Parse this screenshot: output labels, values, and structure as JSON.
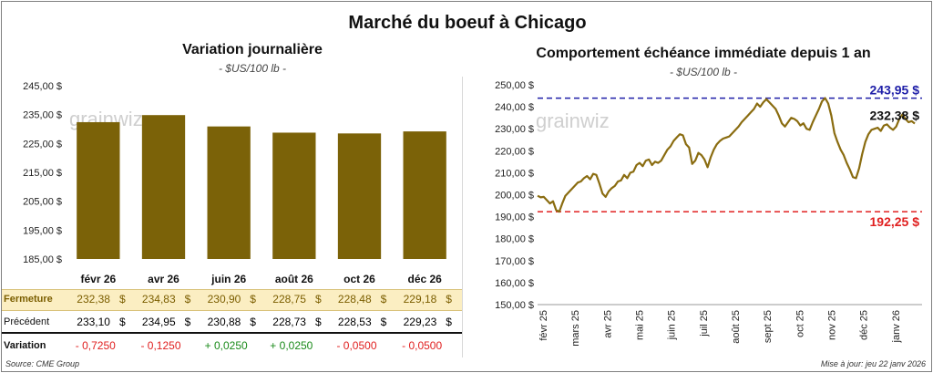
{
  "main_title": "Marché du boeuf à Chicago",
  "left_title": "Variation journalière",
  "left_unit": "- $US/100 lb -",
  "right_title": "Comportement échéance immédiate depuis 1 an",
  "right_unit": "- $US/100 lb -",
  "watermark": "grainwiz",
  "source": "Source: CME Group",
  "updated": "Mise à jour: jeu 22 janv 2026",
  "table": {
    "rows": [
      {
        "label": "Fermeture",
        "values": [
          "232,38",
          "234,83",
          "230,90",
          "228,75",
          "228,48",
          "229,18"
        ],
        "suffix": "$"
      },
      {
        "label": "Précédent",
        "values": [
          "233,10",
          "234,95",
          "230,88",
          "228,73",
          "228,53",
          "229,23"
        ],
        "suffix": "$"
      },
      {
        "label": "Variation",
        "values": [
          "- 0,7250",
          "- 0,1250",
          "+ 0,0250",
          "+ 0,0250",
          "- 0,0500",
          "- 0,0500"
        ],
        "suffix": ""
      }
    ]
  },
  "colors": {
    "bar": "#7b6208",
    "line": "#8a6c10",
    "high": "#1f1fa8",
    "low": "#e02020",
    "highlight": "#fbeec2",
    "pos": "#1a8a1a",
    "neg": "#e02020"
  },
  "chart_data": [
    {
      "type": "bar",
      "title": "Variation journalière",
      "categories": [
        "févr 26",
        "avr 26",
        "juin 26",
        "août 26",
        "oct 26",
        "déc 26"
      ],
      "values": [
        232.38,
        234.83,
        230.9,
        228.75,
        228.48,
        229.18
      ],
      "ylim": [
        185,
        245
      ],
      "yticks": [
        "245,00 $",
        "235,00 $",
        "225,00 $",
        "215,00 $",
        "205,00 $",
        "195,00 $",
        "185,00 $"
      ],
      "grid": false
    },
    {
      "type": "line",
      "title": "Comportement échéance immédiate depuis 1 an",
      "ylim": [
        150,
        250
      ],
      "yticks": [
        "250,00 $",
        "240,00 $",
        "230,00 $",
        "220,00 $",
        "210,00 $",
        "200,00 $",
        "190,00 $",
        "180,00 $",
        "170,00 $",
        "160,00 $",
        "150,00 $"
      ],
      "xticks": [
        "févr 25",
        "mars 25",
        "avr 25",
        "mai 25",
        "juin 25",
        "juil 25",
        "août 25",
        "sept 25",
        "oct 25",
        "nov 25",
        "déc 25",
        "janv 26"
      ],
      "x_start": "2025-01-22",
      "x_end": "2026-01-22",
      "values": [
        199.5,
        198.8,
        199.0,
        197.5,
        196.0,
        197.0,
        193.0,
        192.3,
        196.0,
        199.5,
        201.0,
        202.5,
        204.0,
        205.5,
        206.0,
        207.5,
        208.5,
        207.0,
        209.5,
        209.0,
        205.0,
        200.5,
        199.0,
        201.5,
        203.0,
        204.0,
        206.0,
        206.5,
        209.0,
        207.5,
        210.0,
        210.5,
        213.5,
        214.5,
        213.0,
        215.5,
        216.0,
        213.5,
        215.0,
        214.5,
        215.5,
        218.0,
        220.5,
        222.0,
        224.5,
        226.0,
        227.5,
        227.0,
        223.0,
        221.5,
        214.0,
        215.5,
        219.0,
        218.0,
        216.0,
        212.5,
        217.0,
        220.5,
        223.0,
        224.5,
        225.5,
        226.0,
        226.5,
        228.0,
        229.5,
        231.0,
        233.0,
        234.5,
        236.0,
        237.5,
        239.0,
        241.5,
        240.0,
        242.0,
        243.5,
        242.0,
        240.5,
        239.0,
        236.0,
        232.5,
        231.0,
        233.0,
        235.0,
        234.5,
        233.5,
        231.5,
        232.5,
        230.0,
        229.5,
        233.0,
        236.0,
        239.0,
        242.5,
        243.95,
        241.5,
        236.0,
        228.0,
        224.0,
        220.5,
        218.0,
        214.5,
        211.5,
        208.0,
        207.5,
        212.0,
        218.5,
        224.0,
        227.5,
        229.5,
        230.0,
        230.5,
        229.0,
        231.5,
        232.0,
        230.5,
        229.5,
        231.0,
        234.5,
        236.5,
        234.5,
        233.0,
        233.5,
        232.38
      ],
      "annotations": {
        "high": {
          "value": 243.95,
          "label": "243,95 $"
        },
        "low": {
          "value": 192.25,
          "label": "192,25 $"
        },
        "last": {
          "value": 232.38,
          "label": "232,38 $"
        }
      },
      "grid": false
    }
  ]
}
